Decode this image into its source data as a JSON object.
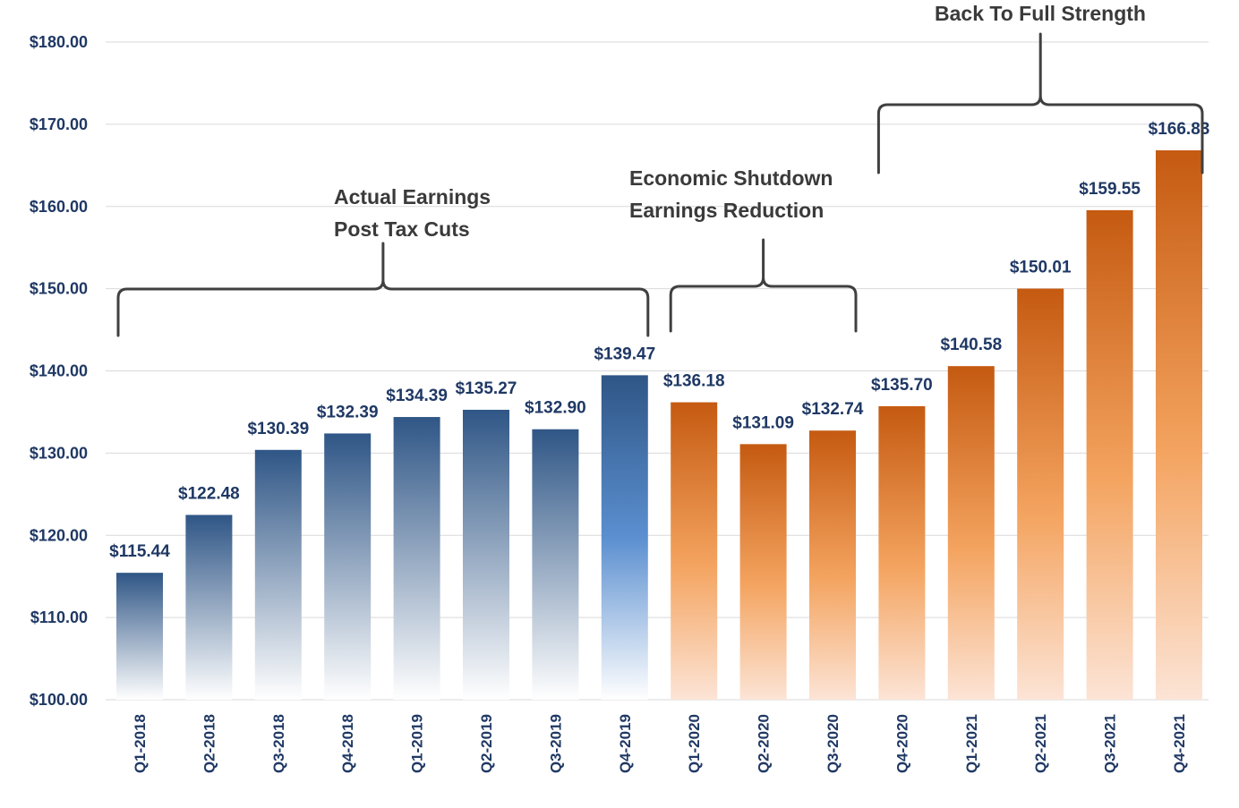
{
  "chart_data": {
    "type": "bar",
    "categories": [
      "Q1-2018",
      "Q2-2018",
      "Q3-2018",
      "Q4-2018",
      "Q1-2019",
      "Q2-2019",
      "Q3-2019",
      "Q4-2019",
      "Q1-2020",
      "Q2-2020",
      "Q3-2020",
      "Q4-2020",
      "Q1-2021",
      "Q2-2021",
      "Q3-2021",
      "Q4-2021"
    ],
    "values": [
      115.44,
      122.48,
      130.39,
      132.39,
      134.39,
      135.27,
      132.9,
      139.47,
      136.18,
      131.09,
      132.74,
      135.7,
      140.58,
      150.01,
      159.55,
      166.83
    ],
    "data_labels": [
      "$115.44",
      "$122.48",
      "$130.39",
      "$132.39",
      "$134.39",
      "$135.27",
      "$132.90",
      "$139.47",
      "$136.18",
      "$131.09",
      "$132.74",
      "$135.70",
      "$140.58",
      "$150.01",
      "$159.55",
      "$166.83"
    ],
    "ylim": [
      100,
      180
    ],
    "yticks": [
      "$100.00",
      "$110.00",
      "$120.00",
      "$130.00",
      "$140.00",
      "$150.00",
      "$160.00",
      "$170.00",
      "$180.00"
    ],
    "grid": true,
    "colors": {
      "actual_top": "#2f5686",
      "actual_bottom": "#ffffff",
      "actual_q4_2019_mid": "#5b8fd0",
      "estimate_top": "#c55a11",
      "estimate_mid": "#f4a460",
      "estimate_bottom": "#fce4d6",
      "label": "#1f3864"
    },
    "annotations": [
      {
        "lines": [
          "Actual Earnings",
          "Post Tax Cuts"
        ],
        "from": "Q1-2018",
        "to": "Q4-2019"
      },
      {
        "lines": [
          "Economic Shutdown",
          "Earnings Reduction"
        ],
        "from": "Q1-2020",
        "to": "Q3-2020"
      },
      {
        "lines": [
          "Back To Full Strength"
        ],
        "from": "Q4-2020",
        "to": "Q4-2021"
      }
    ]
  }
}
